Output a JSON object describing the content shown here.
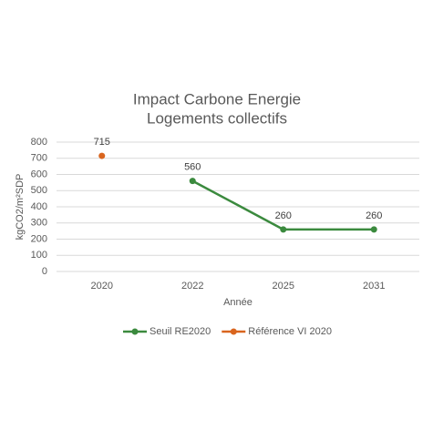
{
  "chart_data": {
    "type": "line",
    "title": [
      "Impact Carbone Energie",
      "Logements collectifs"
    ],
    "x_label": "Année",
    "y_label": "kgCO2/m²SDP",
    "categories": [
      "2020",
      "2022",
      "2025",
      "2031"
    ],
    "series": [
      {
        "name": "Seuil RE2020",
        "color": "#3b8a3e",
        "values": [
          null,
          560,
          260,
          260
        ]
      },
      {
        "name": "Référence VI 2020",
        "color": "#d9651e",
        "values": [
          715,
          null,
          null,
          null
        ]
      }
    ],
    "ylim": [
      0,
      800
    ],
    "yticks": [
      0,
      100,
      200,
      300,
      400,
      500,
      600,
      700,
      800
    ],
    "grid": true,
    "legend": "bottom"
  }
}
